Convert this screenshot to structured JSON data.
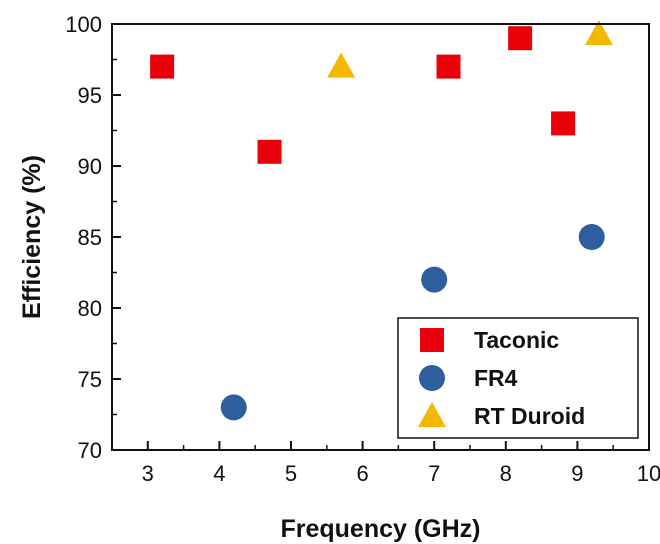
{
  "chart_data": {
    "type": "scatter",
    "title": "",
    "xlabel": "Frequency (GHz)",
    "ylabel": "Efficiency (%)",
    "xlim": [
      2.5,
      10
    ],
    "ylim": [
      70,
      100
    ],
    "xticks": [
      "3",
      "4",
      "5",
      "6",
      "7",
      "8",
      "9",
      "10"
    ],
    "yticks": [
      "70",
      "75",
      "80",
      "85",
      "90",
      "95",
      "100"
    ],
    "grid": false,
    "legend_position": "bottom-right",
    "series": [
      {
        "name": "Taconic",
        "marker": "square",
        "color": "#e8000b",
        "points": [
          {
            "x": 3.2,
            "y": 97
          },
          {
            "x": 4.7,
            "y": 91
          },
          {
            "x": 7.2,
            "y": 97
          },
          {
            "x": 8.2,
            "y": 99
          },
          {
            "x": 8.8,
            "y": 93
          }
        ]
      },
      {
        "name": "FR4",
        "marker": "circle",
        "color": "#2e5e9e",
        "points": [
          {
            "x": 4.2,
            "y": 73
          },
          {
            "x": 7.0,
            "y": 82
          },
          {
            "x": 9.2,
            "y": 85
          }
        ]
      },
      {
        "name": "RT Duroid",
        "marker": "triangle",
        "color": "#f5b800",
        "points": [
          {
            "x": 5.7,
            "y": 97
          },
          {
            "x": 9.3,
            "y": 99.3
          }
        ]
      }
    ]
  }
}
